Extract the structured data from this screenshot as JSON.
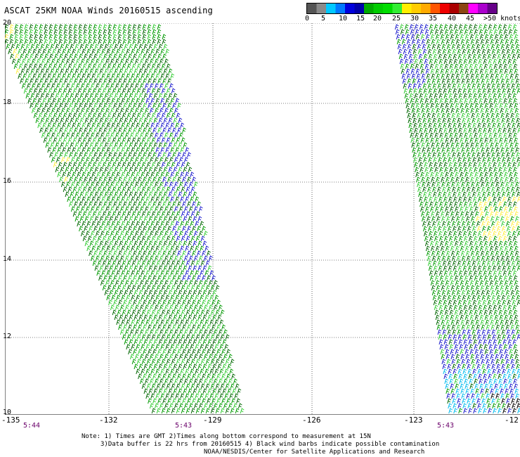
{
  "title": "ASCAT 25KM NOAA Winds 20160515 ascending",
  "scale": {
    "colors": [
      "#555555",
      "#8a8a8a",
      "#00c8ff",
      "#0078ff",
      "#0000dd",
      "#00aa00",
      "#00dd00",
      "#ffee00",
      "#ffaa00",
      "#ff5500",
      "#ee0000",
      "#8b4513",
      "#ff00ff",
      "#aa00cc",
      "#660088"
    ],
    "labels": [
      "0",
      "5",
      "10",
      "15",
      "20",
      "25",
      "30",
      "35",
      "40",
      "45",
      ">50 knots"
    ]
  },
  "lat_labels": [
    "20",
    "18",
    "16",
    "14",
    "12",
    "10"
  ],
  "lon_labels": [
    "-135",
    "-132",
    "-129",
    "-126",
    "-123",
    "-12"
  ],
  "time_labels": [
    "5:44",
    "5:43",
    "5:43"
  ],
  "notes": [
    "Note: 1) Times are GMT 2)Times along bottom correspond to measurement at 15N",
    "3)Data buffer is 22 hrs from 20160515 4) Black wind barbs indicate possible contamination",
    "NOAA/NESDIS/Center for Satellite Applications and Research"
  ],
  "wind_colors": {
    "blue": "#1a1acc",
    "dark_green": "#006600",
    "green": "#009900",
    "light_green": "#33cc33",
    "yellow": "#ffee44",
    "light_blue": "#00bbee",
    "black": "#000000"
  }
}
